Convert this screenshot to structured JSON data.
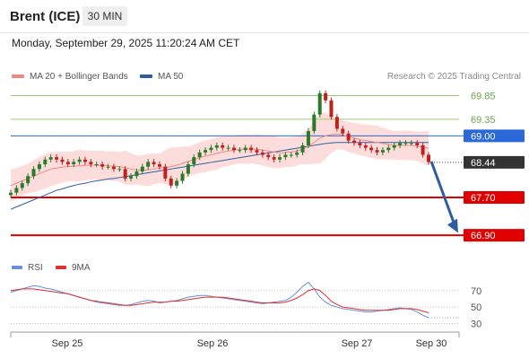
{
  "header": {
    "title": "Brent (ICE)",
    "timeframe": "30 MIN",
    "datetime": "Monday, September 29, 2025 11:20:24 AM CET"
  },
  "legend": {
    "ma20_label": "MA 20 + Bollinger Bands",
    "ma50_label": "MA 50",
    "copyright": "Research © 2025 Trading Central"
  },
  "rsi_legend": {
    "rsi_label": "RSI",
    "ma_label": "9MA"
  },
  "colors": {
    "ma20": "#f08a80",
    "ma50": "#2e5ea0",
    "bollinger": "#fdd4d2",
    "up": "#2a7a2a",
    "down": "#c02020",
    "resistance": "#9dcc7a",
    "support": "#e00000",
    "pivot": "#2a68d8",
    "last": "#333333",
    "rsi": "#6a8fd8",
    "rsi_ma": "#e03030"
  },
  "chart_data": {
    "type": "line",
    "title": "Brent (ICE)",
    "price_axis": {
      "ylim": [
        66.6,
        70.05
      ]
    },
    "x_ticks": [
      "Sep 25",
      "Sep 26",
      "Sep 27",
      "Sep 30"
    ],
    "levels": [
      {
        "value": 69.85,
        "label": "69.85",
        "kind": "resistance"
      },
      {
        "value": 69.35,
        "label": "69.35",
        "kind": "resistance"
      },
      {
        "value": 69.0,
        "label": "69.00",
        "kind": "pivot"
      },
      {
        "value": 68.44,
        "label": "68.44",
        "kind": "last"
      },
      {
        "value": 67.7,
        "label": "67.70",
        "kind": "support"
      },
      {
        "value": 66.9,
        "label": "66.90",
        "kind": "support"
      }
    ],
    "arrow": {
      "from": 68.46,
      "to": 66.95,
      "direction": "down"
    },
    "close_series": [
      67.8,
      67.9,
      68.0,
      68.15,
      68.3,
      68.4,
      68.5,
      68.55,
      68.5,
      68.45,
      68.4,
      68.45,
      68.5,
      68.45,
      68.4,
      68.4,
      68.35,
      68.35,
      68.3,
      68.3,
      68.1,
      68.15,
      68.25,
      68.35,
      68.45,
      68.4,
      68.35,
      68.1,
      67.95,
      68.05,
      68.2,
      68.4,
      68.55,
      68.65,
      68.7,
      68.75,
      68.8,
      68.75,
      68.75,
      68.7,
      68.7,
      68.75,
      68.7,
      68.65,
      68.6,
      68.55,
      68.5,
      68.55,
      68.6,
      68.6,
      68.65,
      68.8,
      69.1,
      69.45,
      69.9,
      69.75,
      69.4,
      69.15,
      69.05,
      68.9,
      68.85,
      68.8,
      68.75,
      68.7,
      68.65,
      68.7,
      68.75,
      68.8,
      68.85,
      68.85,
      68.85,
      68.8,
      68.6,
      68.45
    ],
    "ma20_series": [
      67.95,
      68.0,
      68.05,
      68.1,
      68.15,
      68.2,
      68.25,
      68.3,
      68.32,
      68.34,
      68.35,
      68.36,
      68.37,
      68.38,
      68.38,
      68.38,
      68.38,
      68.37,
      68.36,
      68.35,
      68.33,
      68.3,
      68.28,
      68.27,
      68.28,
      68.3,
      68.32,
      68.34,
      68.35,
      68.38,
      68.42,
      68.46,
      68.5,
      68.54,
      68.57,
      68.6,
      68.63,
      68.66,
      68.68,
      68.7,
      68.72,
      68.72,
      68.72,
      68.72,
      68.7,
      68.68,
      68.66,
      68.64,
      68.65,
      68.66,
      68.68,
      68.72,
      68.78,
      68.86,
      68.95,
      69.0,
      69.03,
      69.04,
      69.02,
      68.98,
      68.95,
      68.92,
      68.9,
      68.88,
      68.86,
      68.84,
      68.82,
      68.8,
      68.8,
      68.8,
      68.8,
      68.78,
      68.76,
      68.74
    ],
    "ma50_series": [
      67.45,
      67.5,
      67.55,
      67.6,
      67.65,
      67.7,
      67.75,
      67.8,
      67.85,
      67.88,
      67.92,
      67.95,
      67.98,
      68.0,
      68.03,
      68.05,
      68.07,
      68.09,
      68.1,
      68.12,
      68.14,
      68.16,
      68.18,
      68.2,
      68.22,
      68.24,
      68.26,
      68.28,
      68.3,
      68.32,
      68.34,
      68.36,
      68.38,
      68.4,
      68.42,
      68.44,
      68.46,
      68.48,
      68.5,
      68.52,
      68.54,
      68.56,
      68.58,
      68.6,
      68.62,
      68.64,
      68.66,
      68.68,
      68.7,
      68.72,
      68.74,
      68.76,
      68.78,
      68.8,
      68.82,
      68.84,
      68.85,
      68.86,
      68.86,
      68.86,
      68.86,
      68.86,
      68.86,
      68.86,
      68.86,
      68.86,
      68.86,
      68.86,
      68.86,
      68.86,
      68.86,
      68.86,
      68.86,
      68.86
    ],
    "rsi": {
      "ylim": [
        25,
        85
      ],
      "ticks": [
        70,
        50,
        30
      ],
      "series": [
        68,
        70,
        72,
        74,
        76,
        75,
        73,
        72,
        70,
        68,
        66,
        64,
        62,
        60,
        58,
        56,
        55,
        54,
        53,
        52,
        52,
        53,
        55,
        57,
        58,
        57,
        55,
        56,
        57,
        58,
        60,
        62,
        63,
        64,
        64,
        63,
        62,
        61,
        60,
        59,
        58,
        57,
        56,
        55,
        54,
        55,
        56,
        57,
        58,
        62,
        68,
        75,
        80,
        72,
        62,
        56,
        52,
        50,
        48,
        47,
        46,
        45,
        44,
        44,
        45,
        46,
        47,
        48,
        49,
        48,
        47,
        44,
        40,
        37
      ],
      "ma_series": [
        70,
        71,
        72,
        72,
        72,
        71,
        70,
        69,
        68,
        67,
        66,
        64,
        62,
        60,
        58,
        57,
        56,
        55,
        54,
        53,
        52,
        52,
        53,
        54,
        55,
        56,
        56,
        56,
        57,
        57,
        58,
        59,
        60,
        61,
        62,
        62,
        62,
        62,
        61,
        60,
        59,
        58,
        57,
        56,
        55,
        55,
        55,
        55,
        56,
        58,
        61,
        65,
        70,
        72,
        70,
        64,
        57,
        53,
        50,
        49,
        48,
        47,
        46,
        46,
        46,
        46,
        46,
        47,
        48,
        48,
        48,
        47,
        45,
        43
      ]
    }
  }
}
